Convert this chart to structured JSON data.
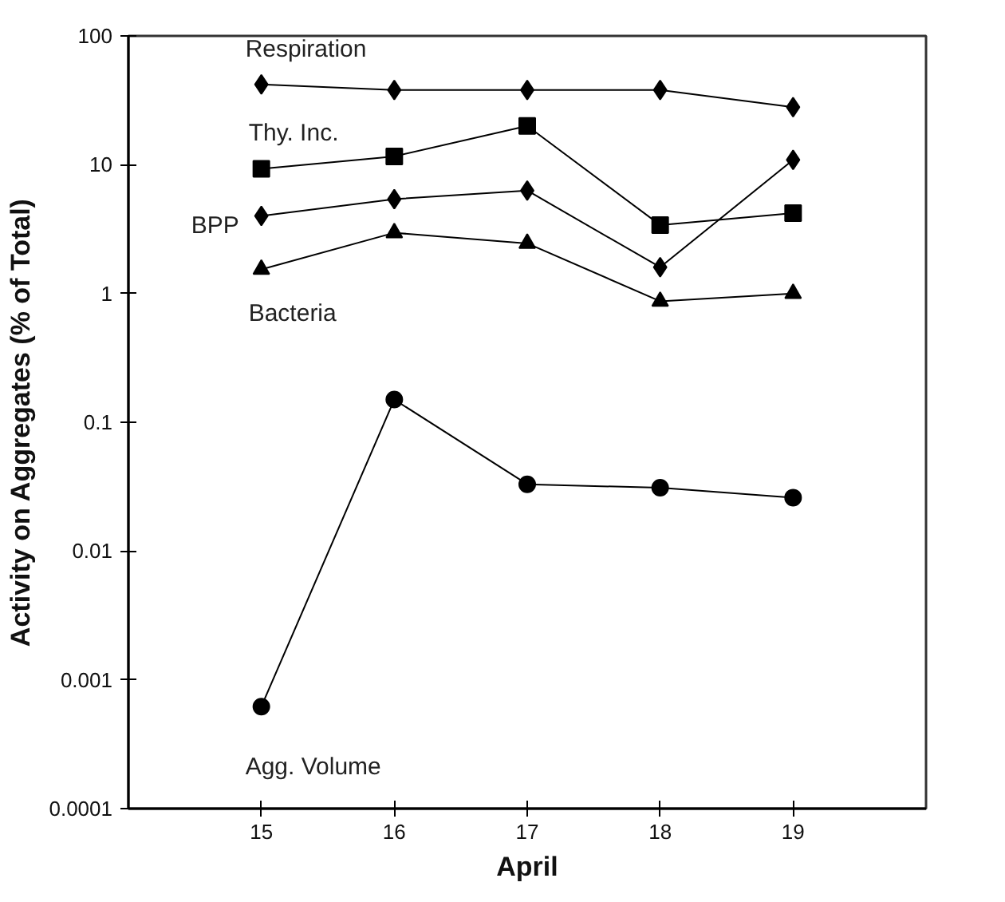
{
  "chart_data": {
    "type": "line",
    "xlabel": "April",
    "ylabel": "Activity on Aggregates (% of Total)",
    "x": [
      15,
      16,
      17,
      18,
      19
    ],
    "series": [
      {
        "name": "Respiration",
        "color": "#000000",
        "marker": "diamond",
        "values": [
          42,
          38,
          38,
          38,
          28
        ]
      },
      {
        "name": "Thy. Inc.",
        "color": "#000000",
        "marker": "square",
        "values": [
          9.3,
          11.6,
          20,
          3.4,
          4.2
        ]
      },
      {
        "name": "BPP",
        "color": "#000000",
        "marker": "diamond",
        "values": [
          4.0,
          5.4,
          6.3,
          1.6,
          10.9
        ]
      },
      {
        "name": "Bacteria",
        "color": "#000000",
        "marker": "triangle",
        "values": [
          1.54,
          2.96,
          2.45,
          0.87,
          1.0
        ]
      },
      {
        "name": "Agg. Volume",
        "color": "#000000",
        "marker": "circle",
        "values": [
          0.00062,
          0.15,
          0.033,
          0.031,
          0.026
        ]
      }
    ],
    "log": "y",
    "grid": false,
    "line_style": "solid",
    "xlim": [
      14,
      20
    ],
    "xticks": [
      15,
      16,
      17,
      18,
      19
    ],
    "ylim": [
      0.0001,
      100
    ],
    "yticks": [
      0.0001,
      0.001,
      0.01,
      0.1,
      1,
      10,
      100
    ]
  }
}
